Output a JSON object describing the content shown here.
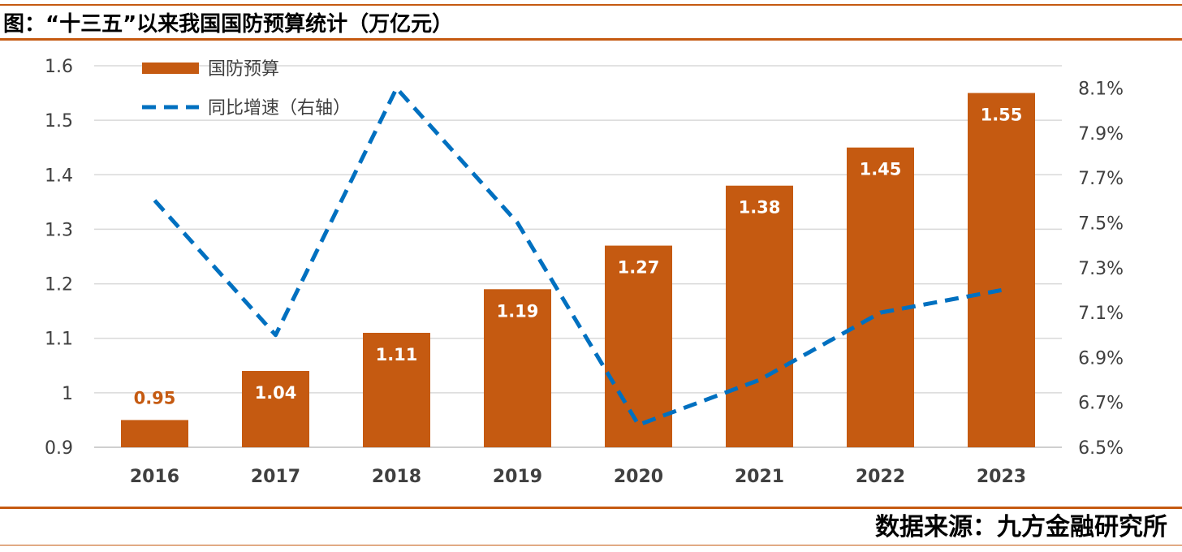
{
  "header": {
    "title": "图：“十三五”以来我国国防预算统计（万亿元）"
  },
  "footer": {
    "source": "数据来源：九方金融研究所"
  },
  "colors": {
    "bar": "#c55a11",
    "line": "#0070c0",
    "grid": "#d9d9d9",
    "rule": "#c55a11"
  },
  "chart_data": {
    "type": "bar",
    "categories": [
      "2016",
      "2017",
      "2018",
      "2019",
      "2020",
      "2021",
      "2022",
      "2023"
    ],
    "series": [
      {
        "name": "国防预算",
        "type": "bar",
        "axis": "left",
        "values": [
          0.95,
          1.04,
          1.11,
          1.19,
          1.27,
          1.38,
          1.45,
          1.55
        ],
        "labels": [
          "0.95",
          "1.04",
          "1.11",
          "1.19",
          "1.27",
          "1.38",
          "1.45",
          "1.55"
        ]
      },
      {
        "name": "同比增速（右轴）",
        "type": "line",
        "axis": "right",
        "style": "dashed",
        "values": [
          7.6,
          7.0,
          8.1,
          7.5,
          6.6,
          6.8,
          7.1,
          7.2
        ]
      }
    ],
    "y_left": {
      "min": 0.9,
      "max": 1.6,
      "ticks": [
        "0.9",
        "1",
        "1.1",
        "1.2",
        "1.3",
        "1.4",
        "1.5",
        "1.6"
      ]
    },
    "y_right": {
      "min": 6.5,
      "max": 8.2,
      "unit": "%",
      "ticks": [
        "6.5%",
        "6.7%",
        "6.9%",
        "7.1%",
        "7.3%",
        "7.5%",
        "7.7%",
        "7.9%",
        "8.1%"
      ]
    },
    "grid": true,
    "legend": "top-left"
  }
}
